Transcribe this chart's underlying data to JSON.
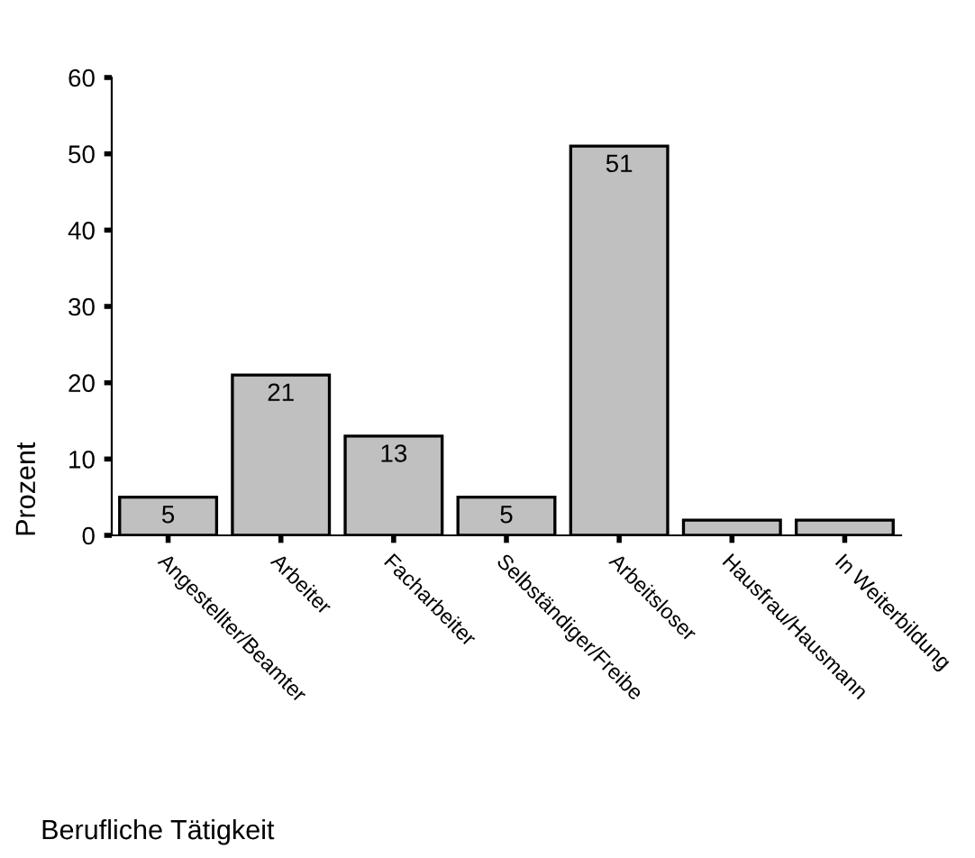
{
  "chart_data": {
    "type": "bar",
    "xlabel": "Berufliche Tätigkeit",
    "ylabel": "Prozent",
    "categories": [
      "Angestellter/Beamter",
      "Arbeiter",
      "Facharbeiter",
      "Selbständiger/Freibe",
      "Arbeitsloser",
      "Hausfrau/Hausmann",
      "In Weiterbildung"
    ],
    "values": [
      5,
      21,
      13,
      5,
      51,
      2,
      2
    ],
    "value_labels": [
      "5",
      "21",
      "13",
      "5",
      "51",
      null,
      null
    ],
    "color": "#c0c0c0",
    "ylim": [
      0,
      60
    ],
    "yticks": [
      0,
      10,
      20,
      30,
      40,
      50,
      60
    ],
    "grid": false
  }
}
